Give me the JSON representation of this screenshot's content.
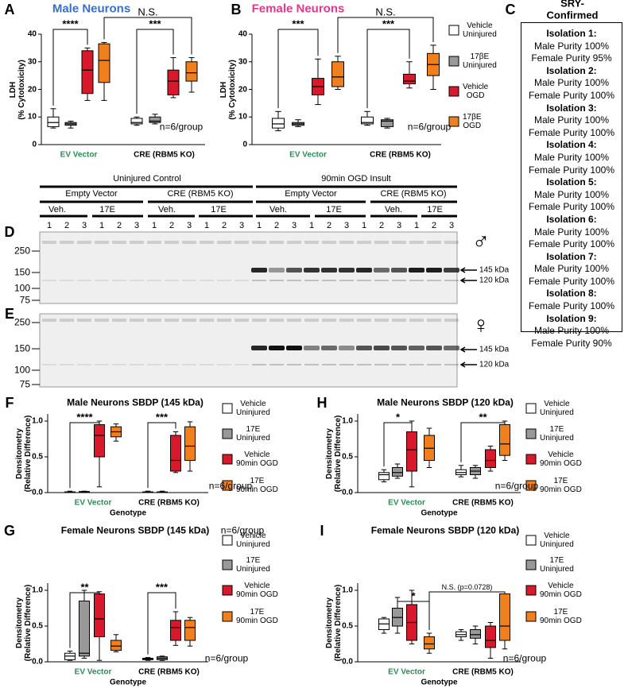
{
  "chart_data": [
    {
      "type": "box",
      "panel": "A",
      "title": "Male Neurons",
      "title_color": "#3a6fc4",
      "ylabel": "LDH\n(% Cytotoxicity)",
      "categories": [
        "EV Vector",
        "CRE (RBM5 KO)"
      ],
      "category_colors": [
        "#2e8b57",
        "#000000"
      ],
      "ylim": [
        0,
        40
      ],
      "yticks": [
        0,
        10,
        20,
        30,
        40
      ],
      "series": [
        {
          "color": "#ffffff",
          "values": [
            [
              6,
              6.5,
              8,
              10,
              13
            ],
            [
              7,
              7.5,
              8,
              9.5,
              10
            ]
          ]
        },
        {
          "color": "#999999",
          "values": [
            [
              6,
              7,
              7.5,
              8,
              8.5
            ],
            [
              7.5,
              8,
              8.5,
              10,
              11
            ]
          ]
        },
        {
          "color": "#d7192b",
          "values": [
            [
              16,
              18.5,
              27,
              34,
              35
            ],
            [
              17,
              18,
              23,
              27,
              31.5
            ]
          ]
        },
        {
          "color": "#f07f1e",
          "values": [
            [
              16,
              22.5,
              30.5,
              36.5,
              37
            ],
            [
              19,
              23,
              26,
              30,
              31.5
            ]
          ]
        }
      ],
      "annotations": [
        "****",
        "***",
        "N.S."
      ],
      "notes": [
        "n=6/group"
      ]
    },
    {
      "type": "box",
      "panel": "B",
      "title": "Female Neurons",
      "title_color": "#e0388c",
      "ylabel": "LDH\n(% Cytotoxicity)",
      "categories": [
        "EV Vector",
        "CRE (RBM5 KO)"
      ],
      "category_colors": [
        "#2e8b57",
        "#000000"
      ],
      "ylim": [
        0,
        40
      ],
      "yticks": [
        0,
        10,
        20,
        30,
        40
      ],
      "series": [
        {
          "name": "Vehicle\nUninjured",
          "color": "#ffffff",
          "values": [
            [
              5,
              6,
              7.5,
              9.5,
              12
            ],
            [
              7,
              7.5,
              8,
              10,
              12
            ]
          ]
        },
        {
          "name": "17βE\nUninjured",
          "color": "#999999",
          "values": [
            [
              6.5,
              7,
              7.5,
              8,
              9
            ],
            [
              6,
              6.5,
              8.5,
              9,
              9.5
            ]
          ]
        },
        {
          "name": "Vehicle\nOGD",
          "color": "#d7192b",
          "values": [
            [
              14.5,
              18,
              21,
              24,
              31
            ],
            [
              20.5,
              22,
              23,
              25.5,
              30
            ]
          ]
        },
        {
          "name": "17βE\nOGD",
          "color": "#f07f1e",
          "values": [
            [
              20,
              21,
              24.5,
              30,
              32
            ],
            [
              20,
              25,
              29,
              33,
              36
            ]
          ]
        }
      ],
      "annotations": [
        "***",
        "***",
        "N.S."
      ],
      "notes": [
        "n=6/group"
      ]
    },
    {
      "type": "box",
      "panel": "F",
      "title": "Male Neurons SBDP (145 kDa)",
      "ylabel": "Densitometry\n(Relative Difference)",
      "xlabel": "Genotype",
      "categories": [
        "EV Vector",
        "CRE (RBM5 KO)"
      ],
      "category_colors": [
        "#2e8b57",
        "#000000"
      ],
      "ylim": [
        0,
        1.1
      ],
      "yticks": [
        {
          "value": 0,
          "label": "0.0"
        },
        {
          "value": 0.5,
          "label": "0.5"
        },
        {
          "value": 1,
          "label": "1.0"
        }
      ],
      "series": [
        {
          "name": "Vehicle\nUninjured",
          "color": "#ffffff",
          "values": [
            [
              0,
              0,
              0.005,
              0.01,
              0.02
            ],
            [
              0,
              0,
              0.005,
              0.01,
              0.02
            ]
          ]
        },
        {
          "name": "17E\nUninjured",
          "color": "#999999",
          "values": [
            [
              0,
              0,
              0.01,
              0.015,
              0.02
            ],
            [
              0,
              0,
              0.005,
              0.01,
              0.02
            ]
          ]
        },
        {
          "name": "Vehicle\n90min OGD",
          "color": "#d7192b",
          "values": [
            [
              0.08,
              0.5,
              0.8,
              0.95,
              1.0
            ],
            [
              0.28,
              0.3,
              0.45,
              0.8,
              0.85
            ]
          ]
        },
        {
          "name": "17E\n90min OGD",
          "color": "#f07f1e",
          "values": [
            [
              0.72,
              0.78,
              0.85,
              0.92,
              0.96
            ],
            [
              0.3,
              0.45,
              0.65,
              0.92,
              0.99
            ]
          ]
        }
      ],
      "annotations": [
        "****",
        "***"
      ],
      "notes": [
        "n=6/group"
      ]
    },
    {
      "type": "box",
      "panel": "G",
      "title": "Female Neurons SBDP (145 kDa)",
      "ylabel": "Densitometry\n(Relative Difference)",
      "xlabel": "Genotype",
      "categories": [
        "EV Vector",
        "CRE (RBM5 KO)"
      ],
      "category_colors": [
        "#2e8b57",
        "#000000"
      ],
      "ylim": [
        0,
        1.1
      ],
      "yticks": [
        {
          "value": 0,
          "label": "0.0"
        },
        {
          "value": 0.5,
          "label": "0.5"
        },
        {
          "value": 1,
          "label": "1.0"
        }
      ],
      "series": [
        {
          "name": "Vehicle\nUninjured",
          "color": "#ffffff",
          "values": [
            [
              0.02,
              0.03,
              0.08,
              0.12,
              0.15
            ],
            [
              0.02,
              0.03,
              0.04,
              0.05,
              0.06
            ]
          ]
        },
        {
          "name": "17E\nUninjured",
          "color": "#999999",
          "values": [
            [
              0.05,
              0.08,
              0.12,
              0.85,
              1.0
            ],
            [
              0.02,
              0.03,
              0.05,
              0.07,
              0.08
            ]
          ]
        },
        {
          "name": "Vehicle\n90min OGD",
          "color": "#d7192b",
          "values": [
            [
              0.02,
              0.35,
              0.6,
              0.95,
              0.98
            ],
            [
              0.23,
              0.3,
              0.48,
              0.58,
              0.7
            ]
          ]
        },
        {
          "name": "17E\n90min OGD",
          "color": "#f07f1e",
          "values": [
            [
              0.14,
              0.16,
              0.22,
              0.3,
              0.38
            ],
            [
              0.22,
              0.3,
              0.48,
              0.58,
              0.62
            ]
          ]
        }
      ],
      "annotations": [
        "**",
        "***"
      ],
      "notes": [
        "n=6/group",
        "n=6/group"
      ]
    },
    {
      "type": "box",
      "panel": "H",
      "title": "Male Neurons SBDP (120 kDa)",
      "ylabel": "Densitometry\n(Relative Difference)",
      "xlabel": "Genotype",
      "categories": [
        "EV Vector",
        "CRE (RBM5 KO)"
      ],
      "category_colors": [
        "#2e8b57",
        "#000000"
      ],
      "ylim": [
        0,
        1.1
      ],
      "yticks": [
        {
          "value": 0,
          "label": "0.0"
        },
        {
          "value": 0.5,
          "label": "0.5"
        },
        {
          "value": 1,
          "label": "1.0"
        }
      ],
      "series": [
        {
          "name": "Vehicle\nUninjured",
          "color": "#ffffff",
          "values": [
            [
              0.15,
              0.18,
              0.25,
              0.28,
              0.32
            ],
            [
              0.22,
              0.25,
              0.28,
              0.32,
              0.38
            ]
          ]
        },
        {
          "name": "17E\nUninjured",
          "color": "#999999",
          "values": [
            [
              0.2,
              0.23,
              0.28,
              0.35,
              0.4
            ],
            [
              0.2,
              0.25,
              0.3,
              0.35,
              0.38
            ]
          ]
        },
        {
          "name": "Vehicle\n90min OGD",
          "color": "#d7192b",
          "values": [
            [
              0.08,
              0.3,
              0.6,
              0.85,
              1.0
            ],
            [
              0.3,
              0.35,
              0.45,
              0.6,
              0.65
            ]
          ]
        },
        {
          "name": "17E\n90min OGD",
          "color": "#f07f1e",
          "values": [
            [
              0.35,
              0.45,
              0.62,
              0.8,
              0.9
            ],
            [
              0.45,
              0.52,
              0.68,
              0.95,
              1.0
            ]
          ]
        }
      ],
      "annotations": [
        "*",
        "**"
      ],
      "notes": [
        "n=6/group"
      ]
    },
    {
      "type": "box",
      "panel": "I",
      "title": "Female Neurons SBDP (120 kDa)",
      "ylabel": "Densitometry\n(Relative Difference)",
      "xlabel": "Genotype",
      "categories": [
        "EV Vector",
        "CRE (RBM5 KO)"
      ],
      "category_colors": [
        "#2e8b57",
        "#000000"
      ],
      "ylim": [
        0,
        1.1
      ],
      "yticks": [
        {
          "value": 0,
          "label": "0.0"
        },
        {
          "value": 0.5,
          "label": "0.5"
        },
        {
          "value": 1,
          "label": "1.0"
        }
      ],
      "series": [
        {
          "name": "Vehicle\nUninjured",
          "color": "#ffffff",
          "values": [
            [
              0.4,
              0.45,
              0.53,
              0.6,
              0.62
            ],
            [
              0.3,
              0.35,
              0.38,
              0.42,
              0.45
            ]
          ]
        },
        {
          "name": "17E\nUninjured",
          "color": "#999999",
          "values": [
            [
              0.4,
              0.5,
              0.62,
              0.75,
              0.9
            ],
            [
              0.25,
              0.33,
              0.38,
              0.45,
              0.5
            ]
          ]
        },
        {
          "name": "Vehicle\n90min OGD",
          "color": "#d7192b",
          "values": [
            [
              0.25,
              0.3,
              0.55,
              0.8,
              1.0
            ],
            [
              0.05,
              0.2,
              0.3,
              0.5,
              0.55
            ]
          ]
        },
        {
          "name": "17E\n90min OGD",
          "color": "#f07f1e",
          "values": [
            [
              0.12,
              0.18,
              0.25,
              0.35,
              0.4
            ],
            [
              0.18,
              0.3,
              0.5,
              0.95,
              0.95
            ]
          ]
        }
      ],
      "annotations": [
        "*",
        "N.S. (p=0.0728)"
      ],
      "notes": [
        "n=6/group"
      ]
    }
  ],
  "blot": {
    "treatments": [
      "Uninjured Control",
      "90min OGD Insult"
    ],
    "vectors": [
      "Empty Vector",
      "CRE (RBM5 KO)",
      "Empty Vector",
      "CRE (RBM5 KO)"
    ],
    "drugs": [
      "Veh.",
      "17E",
      "Veh.",
      "17E",
      "Veh.",
      "17E",
      "Veh.",
      "17E"
    ],
    "lanes": [
      1,
      2,
      3,
      1,
      2,
      3,
      1,
      2,
      3,
      1,
      2,
      3,
      1,
      2,
      3,
      1,
      2,
      3,
      1,
      2,
      3,
      1,
      2,
      3
    ],
    "panels": [
      {
        "label": "D",
        "symbol": "♂",
        "markers": [
          250,
          150,
          100,
          75
        ],
        "bands": [
          "145 kDa",
          "120 kDa"
        ]
      },
      {
        "label": "E",
        "symbol": "♀",
        "markers": [
          250,
          150,
          100,
          75
        ],
        "bands": [
          "145 kDa",
          "120 kDa"
        ]
      }
    ]
  },
  "sry": {
    "letter": "C",
    "title": "SRY-Confirmed",
    "isolations": [
      {
        "name": "Isolation 1:",
        "lines": [
          "Male Purity 100%",
          "Female Purity 95%"
        ]
      },
      {
        "name": "Isolation 2:",
        "lines": [
          "Male Purity 100%",
          "Female Purity 100%"
        ]
      },
      {
        "name": "Isolation 3:",
        "lines": [
          "Male Purity 100%",
          "Female Purity 100%"
        ]
      },
      {
        "name": "Isolation 4:",
        "lines": [
          "Male Purity 100%",
          "Female Purity 100%"
        ]
      },
      {
        "name": "Isolation 5:",
        "lines": [
          "Male Purity 100%",
          "Female Purity 100%"
        ]
      },
      {
        "name": "Isolation 6:",
        "lines": [
          "Male Purity 100%",
          "Female Purity 100%"
        ]
      },
      {
        "name": "Isolation 7:",
        "lines": [
          "Male Purity 100%",
          "Female Purity 100%"
        ]
      },
      {
        "name": "Isolation 8:",
        "lines": [
          "Female Purity 100%"
        ]
      },
      {
        "name": "Isolation 9:",
        "lines": [
          "Male Purity 100%",
          "Female Purity 90%"
        ]
      }
    ]
  }
}
